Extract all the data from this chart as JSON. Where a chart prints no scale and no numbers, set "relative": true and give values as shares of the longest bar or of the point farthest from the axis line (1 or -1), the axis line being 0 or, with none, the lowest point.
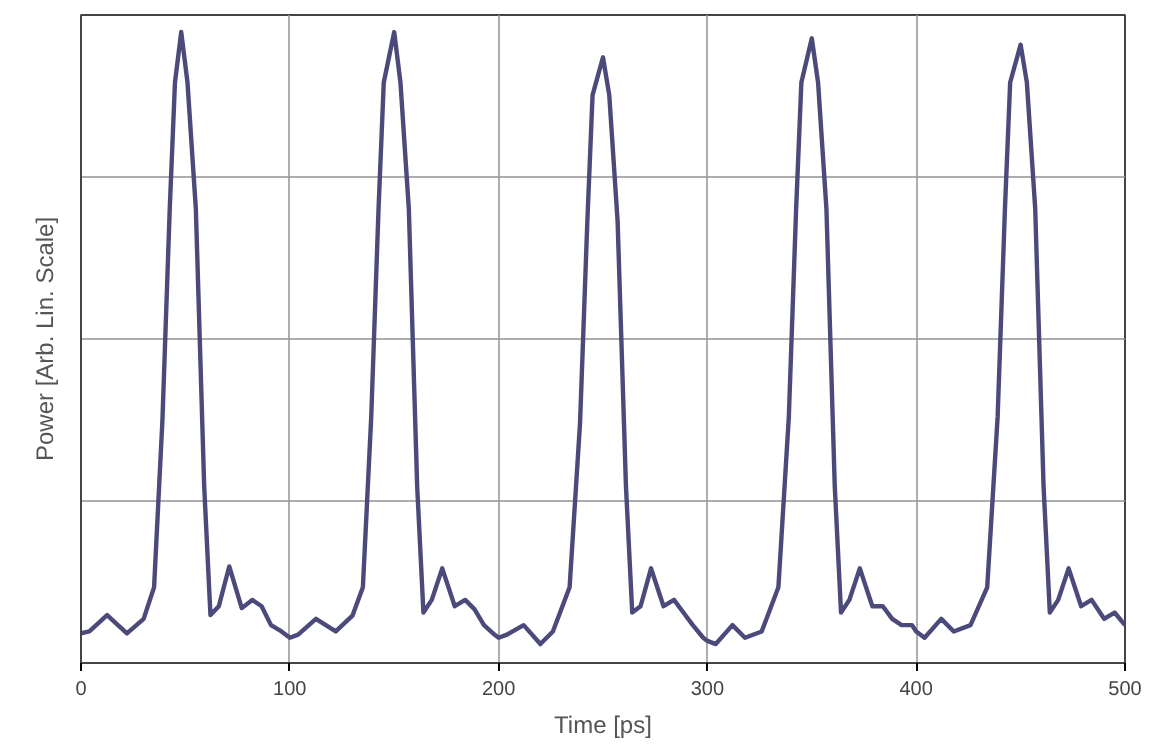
{
  "chart_data": {
    "type": "line",
    "xlabel": "Time [ps]",
    "ylabel": "Power [Arb. Lin. Scale]",
    "relative": true,
    "xlim": [
      0,
      500
    ],
    "xticks": [
      0,
      100,
      200,
      300,
      400,
      500
    ],
    "grid": true,
    "marker": "none",
    "line_style": "solid",
    "series": [
      {
        "color": "#4b4a7a",
        "x": [
          0,
          4,
          12.5,
          22,
          30,
          35,
          39,
          42.5,
          45,
          48,
          51,
          55,
          59,
          62,
          66,
          71,
          77,
          82,
          86.5,
          91,
          96,
          100,
          104,
          112.5,
          122,
          130,
          135,
          139,
          142.5,
          145,
          150,
          153,
          157,
          161,
          164,
          168,
          173,
          179,
          184,
          188.5,
          193,
          198,
          200,
          204,
          212,
          220,
          226,
          234,
          239,
          242.5,
          245,
          250,
          253,
          257,
          261,
          264,
          268,
          273,
          279,
          284,
          288.5,
          293,
          298,
          300,
          304,
          312,
          318,
          326,
          334,
          339,
          342.5,
          345,
          350,
          353,
          357,
          361,
          364,
          368,
          373,
          379,
          384,
          388.5,
          393,
          398,
          400,
          404,
          412,
          418,
          426,
          434,
          439,
          442.5,
          445,
          450,
          453,
          457,
          461,
          464,
          468,
          473,
          479,
          484,
          490,
          495,
          500
        ],
        "values": [
          0.047,
          0.05,
          0.076,
          0.047,
          0.07,
          0.12,
          0.385,
          0.72,
          0.92,
          1.0,
          0.92,
          0.72,
          0.28,
          0.076,
          0.09,
          0.153,
          0.087,
          0.1,
          0.09,
          0.06,
          0.05,
          0.04,
          0.045,
          0.07,
          0.05,
          0.075,
          0.12,
          0.39,
          0.72,
          0.92,
          1.0,
          0.92,
          0.72,
          0.28,
          0.08,
          0.1,
          0.15,
          0.09,
          0.1,
          0.085,
          0.06,
          0.045,
          0.04,
          0.045,
          0.06,
          0.03,
          0.05,
          0.12,
          0.38,
          0.7,
          0.9,
          0.96,
          0.9,
          0.7,
          0.28,
          0.08,
          0.09,
          0.15,
          0.09,
          0.1,
          0.08,
          0.06,
          0.04,
          0.035,
          0.03,
          0.06,
          0.04,
          0.05,
          0.12,
          0.39,
          0.72,
          0.92,
          0.99,
          0.92,
          0.72,
          0.28,
          0.08,
          0.1,
          0.15,
          0.09,
          0.09,
          0.07,
          0.06,
          0.06,
          0.05,
          0.04,
          0.07,
          0.05,
          0.06,
          0.12,
          0.39,
          0.72,
          0.92,
          0.98,
          0.92,
          0.72,
          0.28,
          0.08,
          0.1,
          0.15,
          0.09,
          0.1,
          0.07,
          0.08,
          0.06
        ]
      }
    ]
  }
}
